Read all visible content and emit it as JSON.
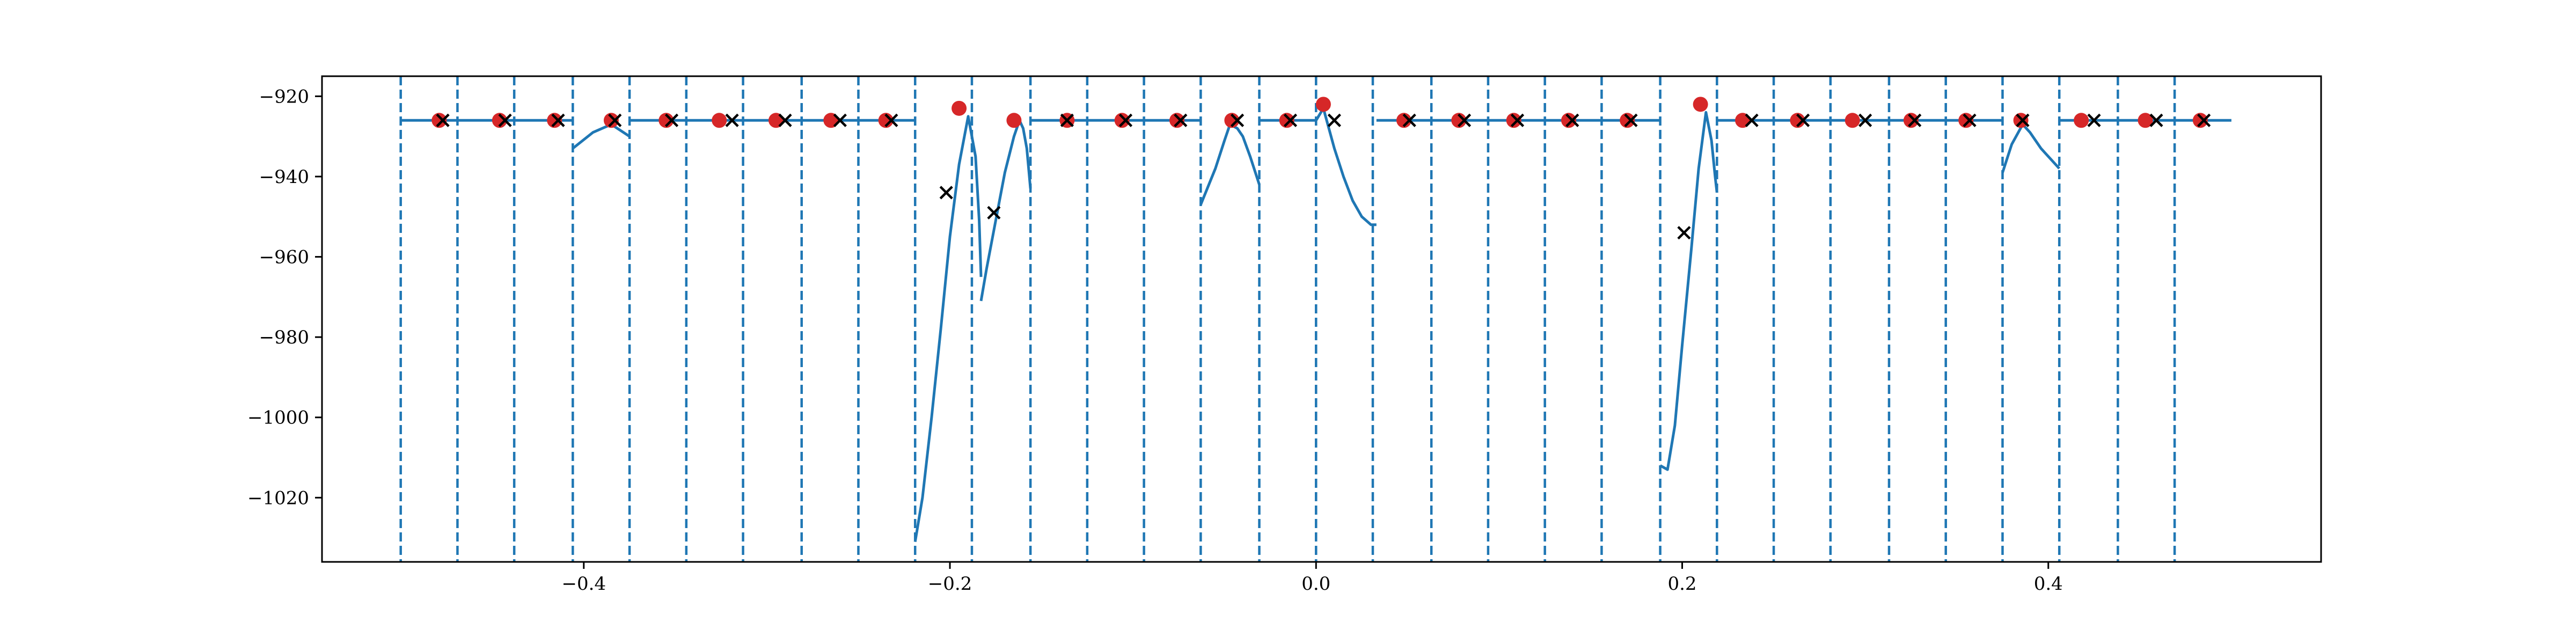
{
  "chart_data": {
    "type": "line",
    "title": "",
    "xlabel": "",
    "ylabel": "",
    "xlim": [
      -0.543,
      0.549
    ],
    "ylim": [
      -1036,
      -915
    ],
    "grid": false,
    "legend": "none",
    "x_ticks": [
      {
        "value": -0.4,
        "label": "−0.4"
      },
      {
        "value": -0.2,
        "label": "−0.2"
      },
      {
        "value": 0.0,
        "label": "0.0"
      },
      {
        "value": 0.2,
        "label": "0.2"
      },
      {
        "value": 0.4,
        "label": "0.4"
      }
    ],
    "y_ticks": [
      {
        "value": -920,
        "label": "−920"
      },
      {
        "value": -940,
        "label": "−940"
      },
      {
        "value": -960,
        "label": "−960"
      },
      {
        "value": -980,
        "label": "−980"
      },
      {
        "value": -1000,
        "label": "−1000"
      },
      {
        "value": -1020,
        "label": "−1020"
      }
    ],
    "colors": {
      "line": "#1f77b4",
      "boundary": "#1f77b4",
      "red_points": "#d62728",
      "x_markers": "#000000"
    },
    "boundaries": [
      -0.5,
      -0.469,
      -0.438,
      -0.406,
      -0.375,
      -0.344,
      -0.313,
      -0.281,
      -0.25,
      -0.219,
      -0.188,
      -0.156,
      -0.125,
      -0.094,
      -0.063,
      -0.031,
      0.0,
      0.031,
      0.063,
      0.094,
      0.125,
      0.156,
      0.188,
      0.219,
      0.25,
      0.281,
      0.313,
      0.344,
      0.375,
      0.406,
      0.438,
      0.469
    ],
    "series": [
      {
        "values_note_free": true,
        "segments": [
          [
            [
              -0.5,
              -926
            ],
            [
              -0.406,
              -926
            ]
          ],
          [
            [
              -0.406,
              -933
            ],
            [
              -0.395,
              -929
            ],
            [
              -0.385,
              -927
            ],
            [
              -0.375,
              -930
            ]
          ],
          [
            [
              -0.375,
              -926
            ],
            [
              -0.219,
              -926
            ]
          ],
          [
            [
              -0.219,
              -1031
            ],
            [
              -0.215,
              -1020
            ],
            [
              -0.21,
              -1000
            ],
            [
              -0.205,
              -978
            ],
            [
              -0.2,
              -955
            ],
            [
              -0.195,
              -937
            ],
            [
              -0.19,
              -925
            ],
            [
              -0.186,
              -935
            ],
            [
              -0.184,
              -951
            ],
            [
              -0.183,
              -965
            ]
          ],
          [
            [
              -0.183,
              -971
            ],
            [
              -0.18,
              -963
            ],
            [
              -0.175,
              -951
            ],
            [
              -0.17,
              -939
            ],
            [
              -0.165,
              -930
            ],
            [
              -0.162,
              -926
            ],
            [
              -0.16,
              -928
            ],
            [
              -0.158,
              -933
            ],
            [
              -0.156,
              -943
            ]
          ],
          [
            [
              -0.156,
              -926
            ],
            [
              -0.063,
              -926
            ]
          ],
          [
            [
              -0.063,
              -947
            ],
            [
              -0.055,
              -938
            ],
            [
              -0.05,
              -931
            ],
            [
              -0.047,
              -927
            ],
            [
              -0.043,
              -928
            ],
            [
              -0.04,
              -930
            ],
            [
              -0.036,
              -935
            ],
            [
              -0.031,
              -942
            ]
          ],
          [
            [
              -0.031,
              -926
            ],
            [
              0.0,
              -926
            ],
            [
              0.004,
              -923
            ],
            [
              0.01,
              -933
            ],
            [
              0.015,
              -940
            ],
            [
              0.02,
              -946
            ],
            [
              0.025,
              -950
            ],
            [
              0.03,
              -952
            ],
            [
              0.033,
              -952
            ]
          ],
          [
            [
              0.033,
              -926
            ],
            [
              0.188,
              -926
            ]
          ],
          [
            [
              0.188,
              -1012
            ],
            [
              0.192,
              -1013
            ],
            [
              0.196,
              -1002
            ],
            [
              0.2,
              -982
            ],
            [
              0.205,
              -958
            ],
            [
              0.209,
              -938
            ],
            [
              0.213,
              -924
            ],
            [
              0.216,
              -931
            ],
            [
              0.218,
              -940
            ],
            [
              0.219,
              -944
            ]
          ],
          [
            [
              0.219,
              -926
            ],
            [
              0.375,
              -926
            ]
          ],
          [
            [
              0.375,
              -939
            ],
            [
              0.38,
              -932
            ],
            [
              0.386,
              -927
            ],
            [
              0.39,
              -929
            ],
            [
              0.396,
              -933
            ],
            [
              0.402,
              -936
            ],
            [
              0.406,
              -938
            ]
          ],
          [
            [
              0.406,
              -926
            ],
            [
              0.5,
              -926
            ]
          ]
        ]
      }
    ],
    "red_points": [
      [
        -0.479,
        -926
      ],
      [
        -0.446,
        -926
      ],
      [
        -0.416,
        -926
      ],
      [
        -0.385,
        -926
      ],
      [
        -0.355,
        -926
      ],
      [
        -0.326,
        -926
      ],
      [
        -0.295,
        -926
      ],
      [
        -0.265,
        -926
      ],
      [
        -0.235,
        -926
      ],
      [
        -0.195,
        -923
      ],
      [
        -0.165,
        -926
      ],
      [
        -0.136,
        -926
      ],
      [
        -0.106,
        -926
      ],
      [
        -0.076,
        -926
      ],
      [
        -0.046,
        -926
      ],
      [
        -0.016,
        -926
      ],
      [
        0.004,
        -922
      ],
      [
        0.048,
        -926
      ],
      [
        0.078,
        -926
      ],
      [
        0.108,
        -926
      ],
      [
        0.138,
        -926
      ],
      [
        0.17,
        -926
      ],
      [
        0.21,
        -922
      ],
      [
        0.233,
        -926
      ],
      [
        0.263,
        -926
      ],
      [
        0.293,
        -926
      ],
      [
        0.325,
        -926
      ],
      [
        0.355,
        -926
      ],
      [
        0.385,
        -926
      ],
      [
        0.418,
        -926
      ],
      [
        0.453,
        -926
      ],
      [
        0.483,
        -926
      ]
    ],
    "x_markers": [
      [
        -0.477,
        -926
      ],
      [
        -0.443,
        -926
      ],
      [
        -0.414,
        -926
      ],
      [
        -0.383,
        -926
      ],
      [
        -0.352,
        -926
      ],
      [
        -0.319,
        -926
      ],
      [
        -0.29,
        -926
      ],
      [
        -0.26,
        -926
      ],
      [
        -0.232,
        -926
      ],
      [
        -0.202,
        -944
      ],
      [
        -0.176,
        -949
      ],
      [
        -0.136,
        -926
      ],
      [
        -0.104,
        -926
      ],
      [
        -0.074,
        -926
      ],
      [
        -0.043,
        -926
      ],
      [
        -0.014,
        -926
      ],
      [
        0.01,
        -926
      ],
      [
        0.051,
        -926
      ],
      [
        0.081,
        -926
      ],
      [
        0.11,
        -926
      ],
      [
        0.14,
        -926
      ],
      [
        0.172,
        -926
      ],
      [
        0.201,
        -954
      ],
      [
        0.238,
        -926
      ],
      [
        0.266,
        -926
      ],
      [
        0.3,
        -926
      ],
      [
        0.327,
        -926
      ],
      [
        0.357,
        -926
      ],
      [
        0.386,
        -926
      ],
      [
        0.425,
        -926
      ],
      [
        0.459,
        -926
      ],
      [
        0.485,
        -926
      ]
    ]
  }
}
